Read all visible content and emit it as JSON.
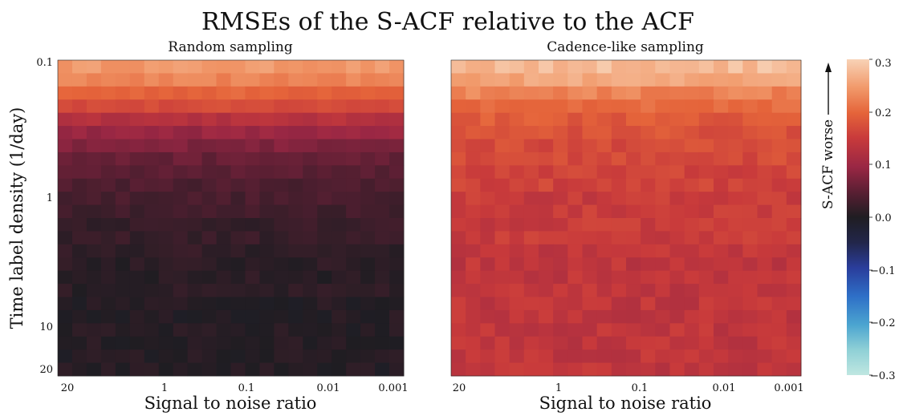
{
  "title": "RMSEs of the S-ACF relative to the ACF",
  "colorbar": {
    "label": "S-ACF worse",
    "ticks": [
      "0.3",
      "0.2",
      "0.1",
      "0.0",
      "−0.1",
      "−0.2",
      "−0.3"
    ],
    "range": [
      -0.3,
      0.3
    ]
  },
  "chart_data": [
    {
      "type": "heatmap",
      "title": "Random sampling",
      "xlabel": "Signal to noise ratio",
      "ylabel": "Time label density (1/day)",
      "xticks": [
        "20",
        "1",
        "0.1",
        "0.01",
        "0.001"
      ],
      "yticks": [
        "0.1",
        "1",
        "10",
        "20"
      ],
      "x_log_range": [
        20,
        0.001
      ],
      "y_log_range": [
        0.1,
        20
      ],
      "value_profile_by_row": [
        0.25,
        0.23,
        0.2,
        0.17,
        0.13,
        0.1,
        0.08,
        0.06,
        0.05,
        0.04,
        0.035,
        0.03,
        0.02,
        0.02,
        0.015,
        0.01,
        0.01,
        0.01,
        0.005,
        0.005,
        0.005,
        0.005,
        0.005,
        0.005
      ]
    },
    {
      "type": "heatmap",
      "title": "Cadence-like sampling",
      "xlabel": "Signal to noise ratio",
      "xticks": [
        "20",
        "1",
        "0.1",
        "0.01",
        "0.001"
      ],
      "x_log_range": [
        20,
        0.001
      ],
      "y_log_range": [
        0.1,
        20
      ],
      "value_profile_by_row": [
        0.28,
        0.26,
        0.23,
        0.21,
        0.19,
        0.18,
        0.17,
        0.17,
        0.16,
        0.16,
        0.15,
        0.15,
        0.15,
        0.15,
        0.14,
        0.14,
        0.14,
        0.14,
        0.14,
        0.14,
        0.14,
        0.14,
        0.14,
        0.14
      ]
    }
  ]
}
